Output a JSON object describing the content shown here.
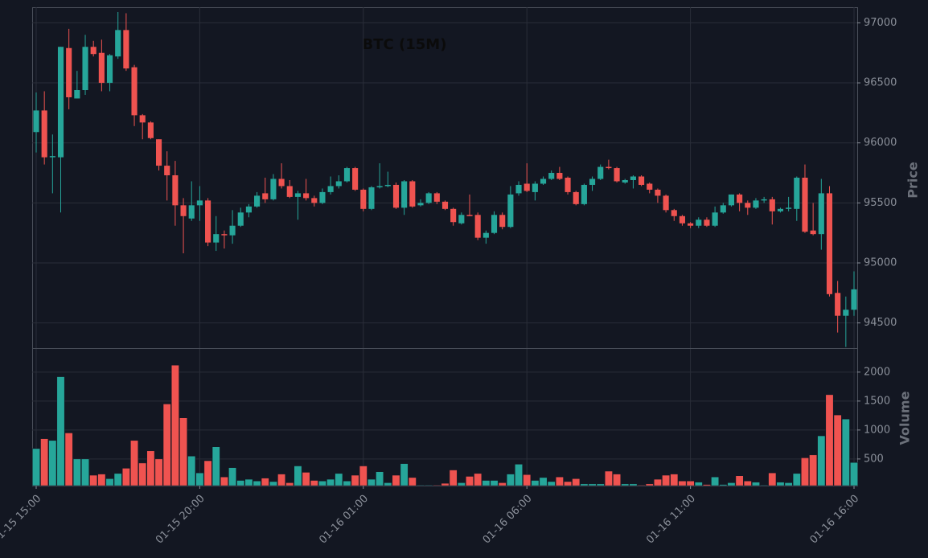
{
  "chart_data": {
    "type": "candlestick",
    "title": "BTC (15M)",
    "ylabel": "Price",
    "volume_label": "Volume",
    "up_color": "#26a69a",
    "down_color": "#ef5350",
    "grid": true,
    "x": [
      "01-15 15:00",
      "01-15 15:15",
      "01-15 15:30",
      "01-15 15:45",
      "01-15 16:00",
      "01-15 16:15",
      "01-15 16:30",
      "01-15 16:45",
      "01-15 17:00",
      "01-15 17:15",
      "01-15 17:30",
      "01-15 17:45",
      "01-15 18:00",
      "01-15 18:15",
      "01-15 18:30",
      "01-15 18:45",
      "01-15 19:00",
      "01-15 19:15",
      "01-15 19:30",
      "01-15 19:45",
      "01-15 20:00",
      "01-15 20:15",
      "01-15 20:30",
      "01-15 20:45",
      "01-15 21:00",
      "01-15 21:15",
      "01-15 21:30",
      "01-15 21:45",
      "01-15 22:00",
      "01-15 22:15",
      "01-15 22:30",
      "01-15 22:45",
      "01-15 23:00",
      "01-15 23:15",
      "01-15 23:30",
      "01-15 23:45",
      "01-16 00:00",
      "01-16 00:15",
      "01-16 00:30",
      "01-16 00:45",
      "01-16 01:00",
      "01-16 01:15",
      "01-16 01:30",
      "01-16 01:45",
      "01-16 02:00",
      "01-16 02:15",
      "01-16 02:30",
      "01-16 02:45",
      "01-16 03:00",
      "01-16 03:15",
      "01-16 03:30",
      "01-16 03:45",
      "01-16 04:00",
      "01-16 04:15",
      "01-16 04:30",
      "01-16 04:45",
      "01-16 05:00",
      "01-16 05:15",
      "01-16 05:30",
      "01-16 05:45",
      "01-16 06:00",
      "01-16 06:15",
      "01-16 06:30",
      "01-16 06:45",
      "01-16 07:00",
      "01-16 07:15",
      "01-16 07:30",
      "01-16 07:45",
      "01-16 08:00",
      "01-16 08:15",
      "01-16 08:30",
      "01-16 08:45",
      "01-16 09:00",
      "01-16 09:15",
      "01-16 09:30",
      "01-16 09:45",
      "01-16 10:00",
      "01-16 10:15",
      "01-16 10:30",
      "01-16 10:45",
      "01-16 11:00",
      "01-16 11:15",
      "01-16 11:30",
      "01-16 11:45",
      "01-16 12:00",
      "01-16 12:15",
      "01-16 12:30",
      "01-16 12:45",
      "01-16 13:00",
      "01-16 13:15",
      "01-16 13:30",
      "01-16 13:45",
      "01-16 14:00",
      "01-16 14:15",
      "01-16 14:30",
      "01-16 14:45",
      "01-16 15:00",
      "01-16 15:15",
      "01-16 15:30",
      "01-16 15:45",
      "01-16 16:00"
    ],
    "open": [
      96090,
      96270,
      95880,
      95880,
      96790,
      96370,
      96440,
      96800,
      96750,
      96500,
      96720,
      96940,
      96630,
      96230,
      96170,
      96030,
      95810,
      95730,
      95480,
      95370,
      95480,
      95520,
      95170,
      95240,
      95230,
      95310,
      95420,
      95470,
      95580,
      95530,
      95700,
      95640,
      95550,
      95580,
      95540,
      95500,
      95590,
      95640,
      95680,
      95790,
      95610,
      95450,
      95630,
      95640,
      95650,
      95460,
      95680,
      95480,
      95500,
      95580,
      95510,
      95450,
      95330,
      95400,
      95400,
      95210,
      95250,
      95400,
      95300,
      95580,
      95660,
      95590,
      95660,
      95700,
      95750,
      95710,
      95590,
      95490,
      95650,
      95700,
      95800,
      95790,
      95670,
      95690,
      95720,
      95660,
      95610,
      95560,
      95440,
      95390,
      95330,
      95310,
      95360,
      95310,
      95420,
      95480,
      95570,
      95500,
      95460,
      95520,
      95530,
      95430,
      95450,
      95450,
      95710,
      95270,
      95240,
      95580,
      94750,
      94560,
      94610
    ],
    "high": [
      96420,
      96430,
      96070,
      96800,
      96950,
      96600,
      96900,
      96850,
      96860,
      96740,
      97090,
      97080,
      96650,
      96240,
      96180,
      96030,
      95930,
      95850,
      95540,
      95680,
      95640,
      95540,
      95390,
      95270,
      95440,
      95460,
      95490,
      95590,
      95710,
      95740,
      95830,
      95690,
      95600,
      95700,
      95560,
      95620,
      95720,
      95730,
      95800,
      95800,
      95620,
      95640,
      95830,
      95760,
      95670,
      95690,
      95690,
      95530,
      95590,
      95590,
      95520,
      95460,
      95420,
      95570,
      95420,
      95270,
      95430,
      95420,
      95640,
      95680,
      95830,
      95680,
      95720,
      95770,
      95800,
      95720,
      95600,
      95660,
      95720,
      95820,
      95860,
      95800,
      95700,
      95730,
      95730,
      95670,
      95620,
      95570,
      95450,
      95400,
      95340,
      95380,
      95380,
      95470,
      95500,
      95570,
      95580,
      95520,
      95540,
      95550,
      95550,
      95460,
      95550,
      95720,
      95820,
      95500,
      95700,
      95640,
      94850,
      94720,
      94930
    ],
    "low": [
      95920,
      95820,
      95580,
      95420,
      96280,
      96370,
      96400,
      96720,
      96430,
      96430,
      96700,
      96600,
      96140,
      96030,
      96030,
      95770,
      95520,
      95310,
      95080,
      95350,
      95350,
      95140,
      95100,
      95120,
      95160,
      95300,
      95380,
      95460,
      95500,
      95520,
      95620,
      95540,
      95360,
      95520,
      95470,
      95490,
      95570,
      95620,
      95670,
      95600,
      95430,
      95440,
      95620,
      95630,
      95450,
      95400,
      95460,
      95470,
      95490,
      95490,
      95440,
      95310,
      95320,
      95390,
      95190,
      95160,
      95240,
      95280,
      95290,
      95560,
      95590,
      95520,
      95650,
      95690,
      95690,
      95570,
      95480,
      95480,
      95600,
      95690,
      95780,
      95670,
      95660,
      95620,
      95640,
      95580,
      95500,
      95420,
      95350,
      95310,
      95290,
      95290,
      95300,
      95300,
      95410,
      95470,
      95430,
      95400,
      95450,
      95500,
      95320,
      95420,
      95430,
      95350,
      95250,
      95230,
      95110,
      94720,
      94420,
      94300,
      94560
    ],
    "close": [
      96270,
      95880,
      95890,
      96800,
      96380,
      96440,
      96800,
      96740,
      96500,
      96730,
      96940,
      96620,
      96230,
      96170,
      96040,
      95810,
      95730,
      95480,
      95390,
      95480,
      95520,
      95170,
      95240,
      95230,
      95310,
      95420,
      95470,
      95560,
      95530,
      95700,
      95640,
      95550,
      95580,
      95540,
      95500,
      95590,
      95640,
      95680,
      95790,
      95610,
      95450,
      95630,
      95640,
      95650,
      95460,
      95680,
      95470,
      95500,
      95580,
      95510,
      95450,
      95340,
      95400,
      95390,
      95210,
      95250,
      95400,
      95300,
      95570,
      95650,
      95600,
      95660,
      95700,
      95750,
      95700,
      95590,
      95490,
      95650,
      95700,
      95800,
      95790,
      95680,
      95690,
      95720,
      95650,
      95610,
      95560,
      95440,
      95390,
      95330,
      95310,
      95360,
      95310,
      95420,
      95480,
      95570,
      95500,
      95460,
      95520,
      95530,
      95430,
      95450,
      95460,
      95710,
      95260,
      95240,
      95580,
      94740,
      94560,
      94610,
      94780
    ],
    "volume": [
      680,
      850,
      820,
      1920,
      950,
      500,
      500,
      220,
      240,
      160,
      250,
      340,
      820,
      430,
      640,
      500,
      1450,
      2120,
      1210,
      550,
      260,
      470,
      710,
      190,
      350,
      130,
      150,
      120,
      170,
      110,
      240,
      90,
      380,
      270,
      130,
      120,
      150,
      250,
      120,
      220,
      380,
      150,
      280,
      90,
      220,
      420,
      180,
      50,
      50,
      50,
      80,
      310,
      90,
      200,
      250,
      130,
      130,
      90,
      240,
      410,
      230,
      130,
      180,
      110,
      190,
      110,
      160,
      70,
      70,
      70,
      290,
      240,
      70,
      70,
      50,
      70,
      150,
      220,
      240,
      120,
      120,
      100,
      60,
      190,
      60,
      90,
      210,
      120,
      100,
      50,
      260,
      100,
      90,
      250,
      520,
      570,
      900,
      1610,
      1260,
      1190,
      440
    ],
    "xticks": [
      "01-15 15:00",
      "01-15 20:00",
      "01-16 01:00",
      "01-16 06:00",
      "01-16 11:00",
      "01-16 16:00"
    ],
    "ylim": [
      94290,
      97130
    ],
    "yticks": [
      94500,
      95000,
      95500,
      96000,
      96500,
      97000
    ],
    "volume_ylim": [
      40,
      2400
    ],
    "volume_yticks": [
      500,
      1000,
      1500,
      2000
    ]
  }
}
